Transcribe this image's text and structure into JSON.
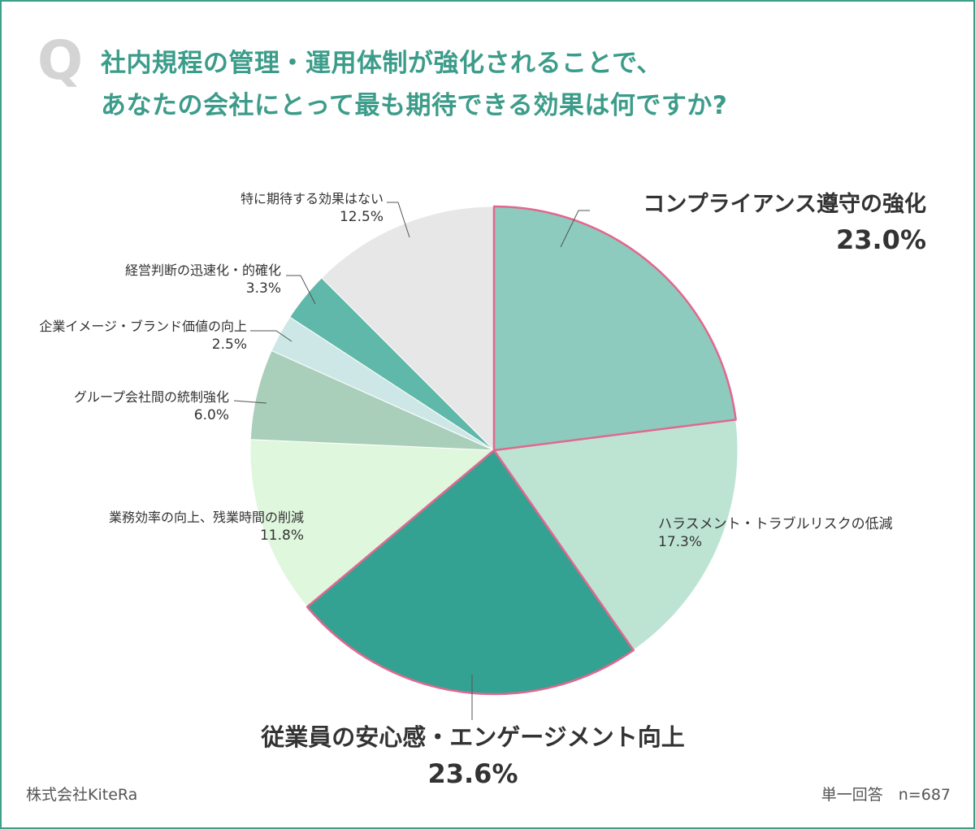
{
  "question": {
    "mark": "Q",
    "line1": "社内規程の管理・運用体制が強化されることで、",
    "line2": "あなたの会社にとって最も期待できる効果は何ですか?"
  },
  "chart_data": {
    "type": "pie",
    "start_angle_deg": 0,
    "direction": "clockwise",
    "slices": [
      {
        "label": "コンプライアンス遵守の強化",
        "value": 23.0,
        "display": "23.0%",
        "color": "#8ccbbd",
        "highlight": true
      },
      {
        "label": "ハラスメント・トラブルリスクの低減",
        "value": 17.3,
        "display": "17.3%",
        "color": "#bde4d3",
        "highlight": false
      },
      {
        "label": "従業員の安心感・エンゲージメント向上",
        "value": 23.6,
        "display": "23.6%",
        "color": "#34a292",
        "highlight": true
      },
      {
        "label": "業務効率の向上、残業時間の削減",
        "value": 11.8,
        "display": "11.8%",
        "color": "#dff7dd",
        "highlight": false
      },
      {
        "label": "グループ会社間の統制強化",
        "value": 6.0,
        "display": "6.0%",
        "color": "#a9cfbb",
        "highlight": false
      },
      {
        "label": "企業イメージ・ブランド価値の向上",
        "value": 2.5,
        "display": "2.5%",
        "color": "#cde7e7",
        "highlight": false
      },
      {
        "label": "経営判断の迅速化・的確化",
        "value": 3.3,
        "display": "3.3%",
        "color": "#5fb8a9",
        "highlight": false
      },
      {
        "label": "特に期待する効果はない",
        "value": 12.5,
        "display": "12.5%",
        "color": "#e7e7e7",
        "highlight": false
      }
    ],
    "highlight_stroke_color": "#e2678f"
  },
  "footer": {
    "company": "株式会社KiteRa",
    "sample": "単一回答　n=687"
  }
}
